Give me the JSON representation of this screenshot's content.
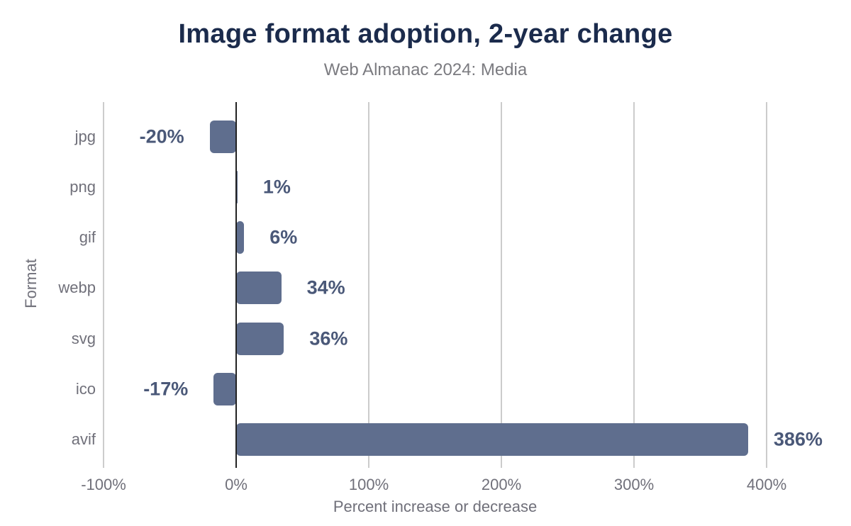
{
  "chart_data": {
    "type": "bar",
    "orientation": "horizontal",
    "title": "Image format adoption, 2-year change",
    "subtitle": "Web Almanac 2024: Media",
    "xlabel": "Percent increase or decrease",
    "ylabel": "Format",
    "categories": [
      "jpg",
      "png",
      "gif",
      "webp",
      "svg",
      "ico",
      "avif"
    ],
    "values": [
      -20,
      1,
      6,
      34,
      36,
      -17,
      386
    ],
    "value_labels": [
      "-20%",
      "1%",
      "6%",
      "34%",
      "36%",
      "-17%",
      "386%"
    ],
    "xlim": [
      -100,
      400
    ],
    "xticks": [
      {
        "value": -100,
        "label": "-100%"
      },
      {
        "value": 0,
        "label": "0%"
      },
      {
        "value": 100,
        "label": "100%"
      },
      {
        "value": 200,
        "label": "200%"
      },
      {
        "value": 300,
        "label": "300%"
      },
      {
        "value": 400,
        "label": "400%"
      }
    ],
    "grid": "vertical-gridlines-on",
    "legend": "none",
    "colors": {
      "bar": "#5f6e8e",
      "value_label": "#4a5878",
      "title": "#1b2b4c",
      "subtitle": "#7b7b80",
      "axis_text": "#70707a",
      "gridline": "#cccccc",
      "zero_axis": "#222222",
      "background": "#ffffff"
    }
  }
}
